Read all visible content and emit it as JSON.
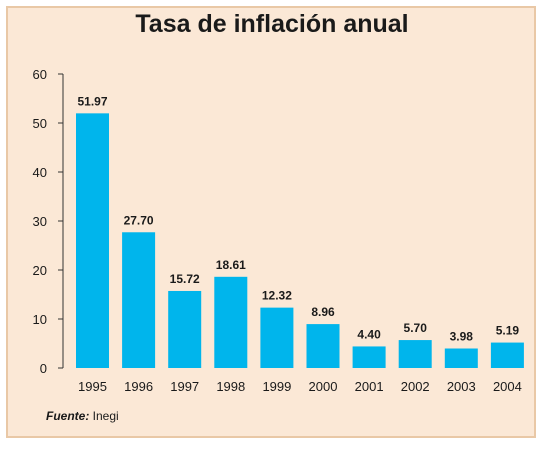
{
  "chart_data": {
    "type": "bar",
    "title": "Tasa de inflación anual",
    "categories": [
      "1995",
      "1996",
      "1997",
      "1998",
      "1999",
      "2000",
      "2001",
      "2002",
      "2003",
      "2004"
    ],
    "values": [
      51.97,
      27.7,
      15.72,
      18.61,
      12.32,
      8.96,
      4.4,
      5.7,
      3.98,
      5.19
    ],
    "value_labels": [
      "51.97",
      "27.70",
      "15.72",
      "18.61",
      "12.32",
      "8.96",
      "4.40",
      "5.70",
      "3.98",
      "5.19"
    ],
    "xlabel": "",
    "ylabel": "",
    "ylim": [
      0,
      60
    ],
    "yticks": [
      0,
      10,
      20,
      30,
      40,
      50,
      60
    ],
    "grid": false,
    "bar_color": "#00b5ec",
    "background_color": "#fbe8d6"
  },
  "source": {
    "label": "Fuente:",
    "text": " Inegi"
  }
}
